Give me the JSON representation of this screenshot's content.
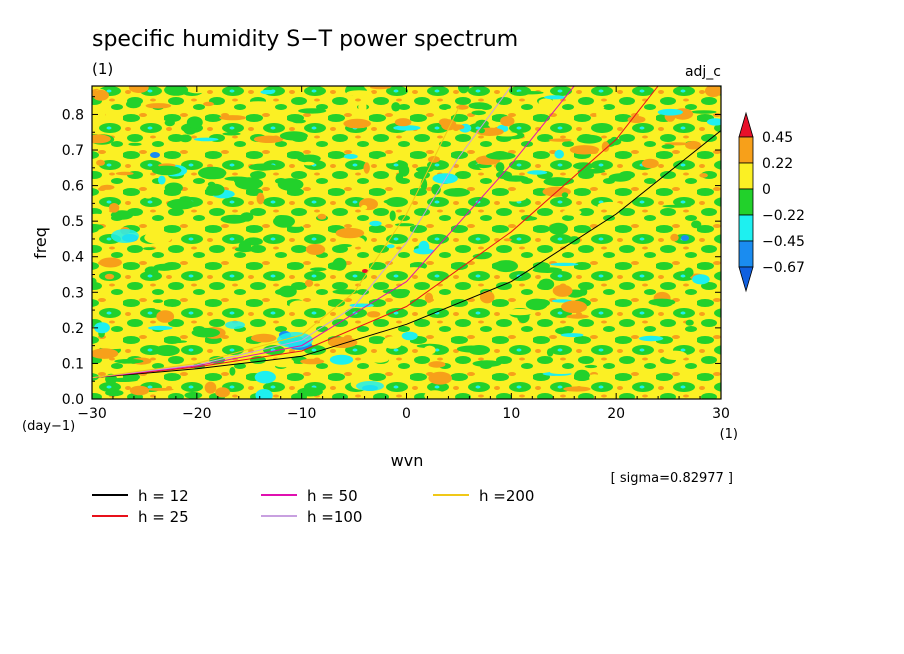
{
  "chart_data": {
    "type": "heatmap",
    "title": "specific humidity S−T power spectrum",
    "title_units": "(1)",
    "corner_label": "adj_c",
    "xlabel": "wvn",
    "ylabel": "freq",
    "x_units": "(1)",
    "y_units": "(day−1)",
    "xlim": [
      -30,
      30
    ],
    "ylim": [
      0,
      0.88
    ],
    "x_ticks": [
      {
        "value": -30,
        "label": "−30"
      },
      {
        "value": -20,
        "label": "−20"
      },
      {
        "value": -10,
        "label": "−10"
      },
      {
        "value": 0,
        "label": "0"
      },
      {
        "value": 10,
        "label": "10"
      },
      {
        "value": 20,
        "label": "20"
      },
      {
        "value": 30,
        "label": "30"
      }
    ],
    "y_ticks": [
      {
        "value": 0,
        "label": "0.0"
      },
      {
        "value": 0.1,
        "label": "0.1"
      },
      {
        "value": 0.2,
        "label": "0.2"
      },
      {
        "value": 0.3,
        "label": "0.3"
      },
      {
        "value": 0.4,
        "label": "0.4"
      },
      {
        "value": 0.5,
        "label": "0.5"
      },
      {
        "value": 0.6,
        "label": "0.6"
      },
      {
        "value": 0.7,
        "label": "0.7"
      },
      {
        "value": 0.8,
        "label": "0.8"
      }
    ],
    "grid": false,
    "colorbar": {
      "placement": "right",
      "levels": [
        {
          "value": "0.45",
          "label": "0.45"
        },
        {
          "value": "0.22",
          "label": "0.22"
        },
        {
          "value": "0",
          "label": "0"
        },
        {
          "value": "-0.22",
          "label": "−0.22"
        },
        {
          "value": "-0.45",
          "label": "−0.45"
        },
        {
          "value": "-0.67",
          "label": "−0.67"
        }
      ],
      "colors": [
        "#e8102a",
        "#f7a01a",
        "#fbf024",
        "#22d12b",
        "#1ef0f0",
        "#1a8cf0",
        "#1060e0"
      ]
    },
    "sigma_note": "[ sigma=0.82977 ]",
    "dispersion_curves": [
      {
        "label": "h = 12",
        "h": 12,
        "color": "#000000",
        "points": [
          [
            -30,
            0.06
          ],
          [
            -20,
            0.085
          ],
          [
            -10,
            0.12
          ],
          [
            0,
            0.21
          ],
          [
            10,
            0.33
          ],
          [
            20,
            0.52
          ],
          [
            30,
            0.755
          ]
        ]
      },
      {
        "label": "h = 25",
        "h": 25,
        "color": "#e8101a",
        "points": [
          [
            -30,
            0.06
          ],
          [
            -20,
            0.09
          ],
          [
            -10,
            0.135
          ],
          [
            0,
            0.26
          ],
          [
            10,
            0.47
          ],
          [
            20,
            0.73
          ],
          [
            24,
            0.88
          ]
        ]
      },
      {
        "label": "h = 50",
        "h": 50,
        "color": "#e010b0",
        "points": [
          [
            -30,
            0.06
          ],
          [
            -20,
            0.093
          ],
          [
            -10,
            0.15
          ],
          [
            0,
            0.33
          ],
          [
            10,
            0.66
          ],
          [
            16,
            0.88
          ]
        ]
      },
      {
        "label": "h =100",
        "h": 100,
        "color": "#c8a0e0",
        "points": [
          [
            -30,
            0.06
          ],
          [
            -20,
            0.096
          ],
          [
            -10,
            0.165
          ],
          [
            -5,
            0.26
          ],
          [
            0,
            0.44
          ],
          [
            5,
            0.68
          ],
          [
            10,
            0.88
          ]
        ]
      },
      {
        "label": "h =200",
        "h": 200,
        "color": "#f0c818",
        "points": [
          [
            -30,
            0.06
          ],
          [
            -20,
            0.1
          ],
          [
            -10,
            0.18
          ],
          [
            -5,
            0.3
          ],
          [
            0,
            0.52
          ],
          [
            3,
            0.7
          ],
          [
            5,
            0.82
          ]
        ]
      }
    ]
  }
}
